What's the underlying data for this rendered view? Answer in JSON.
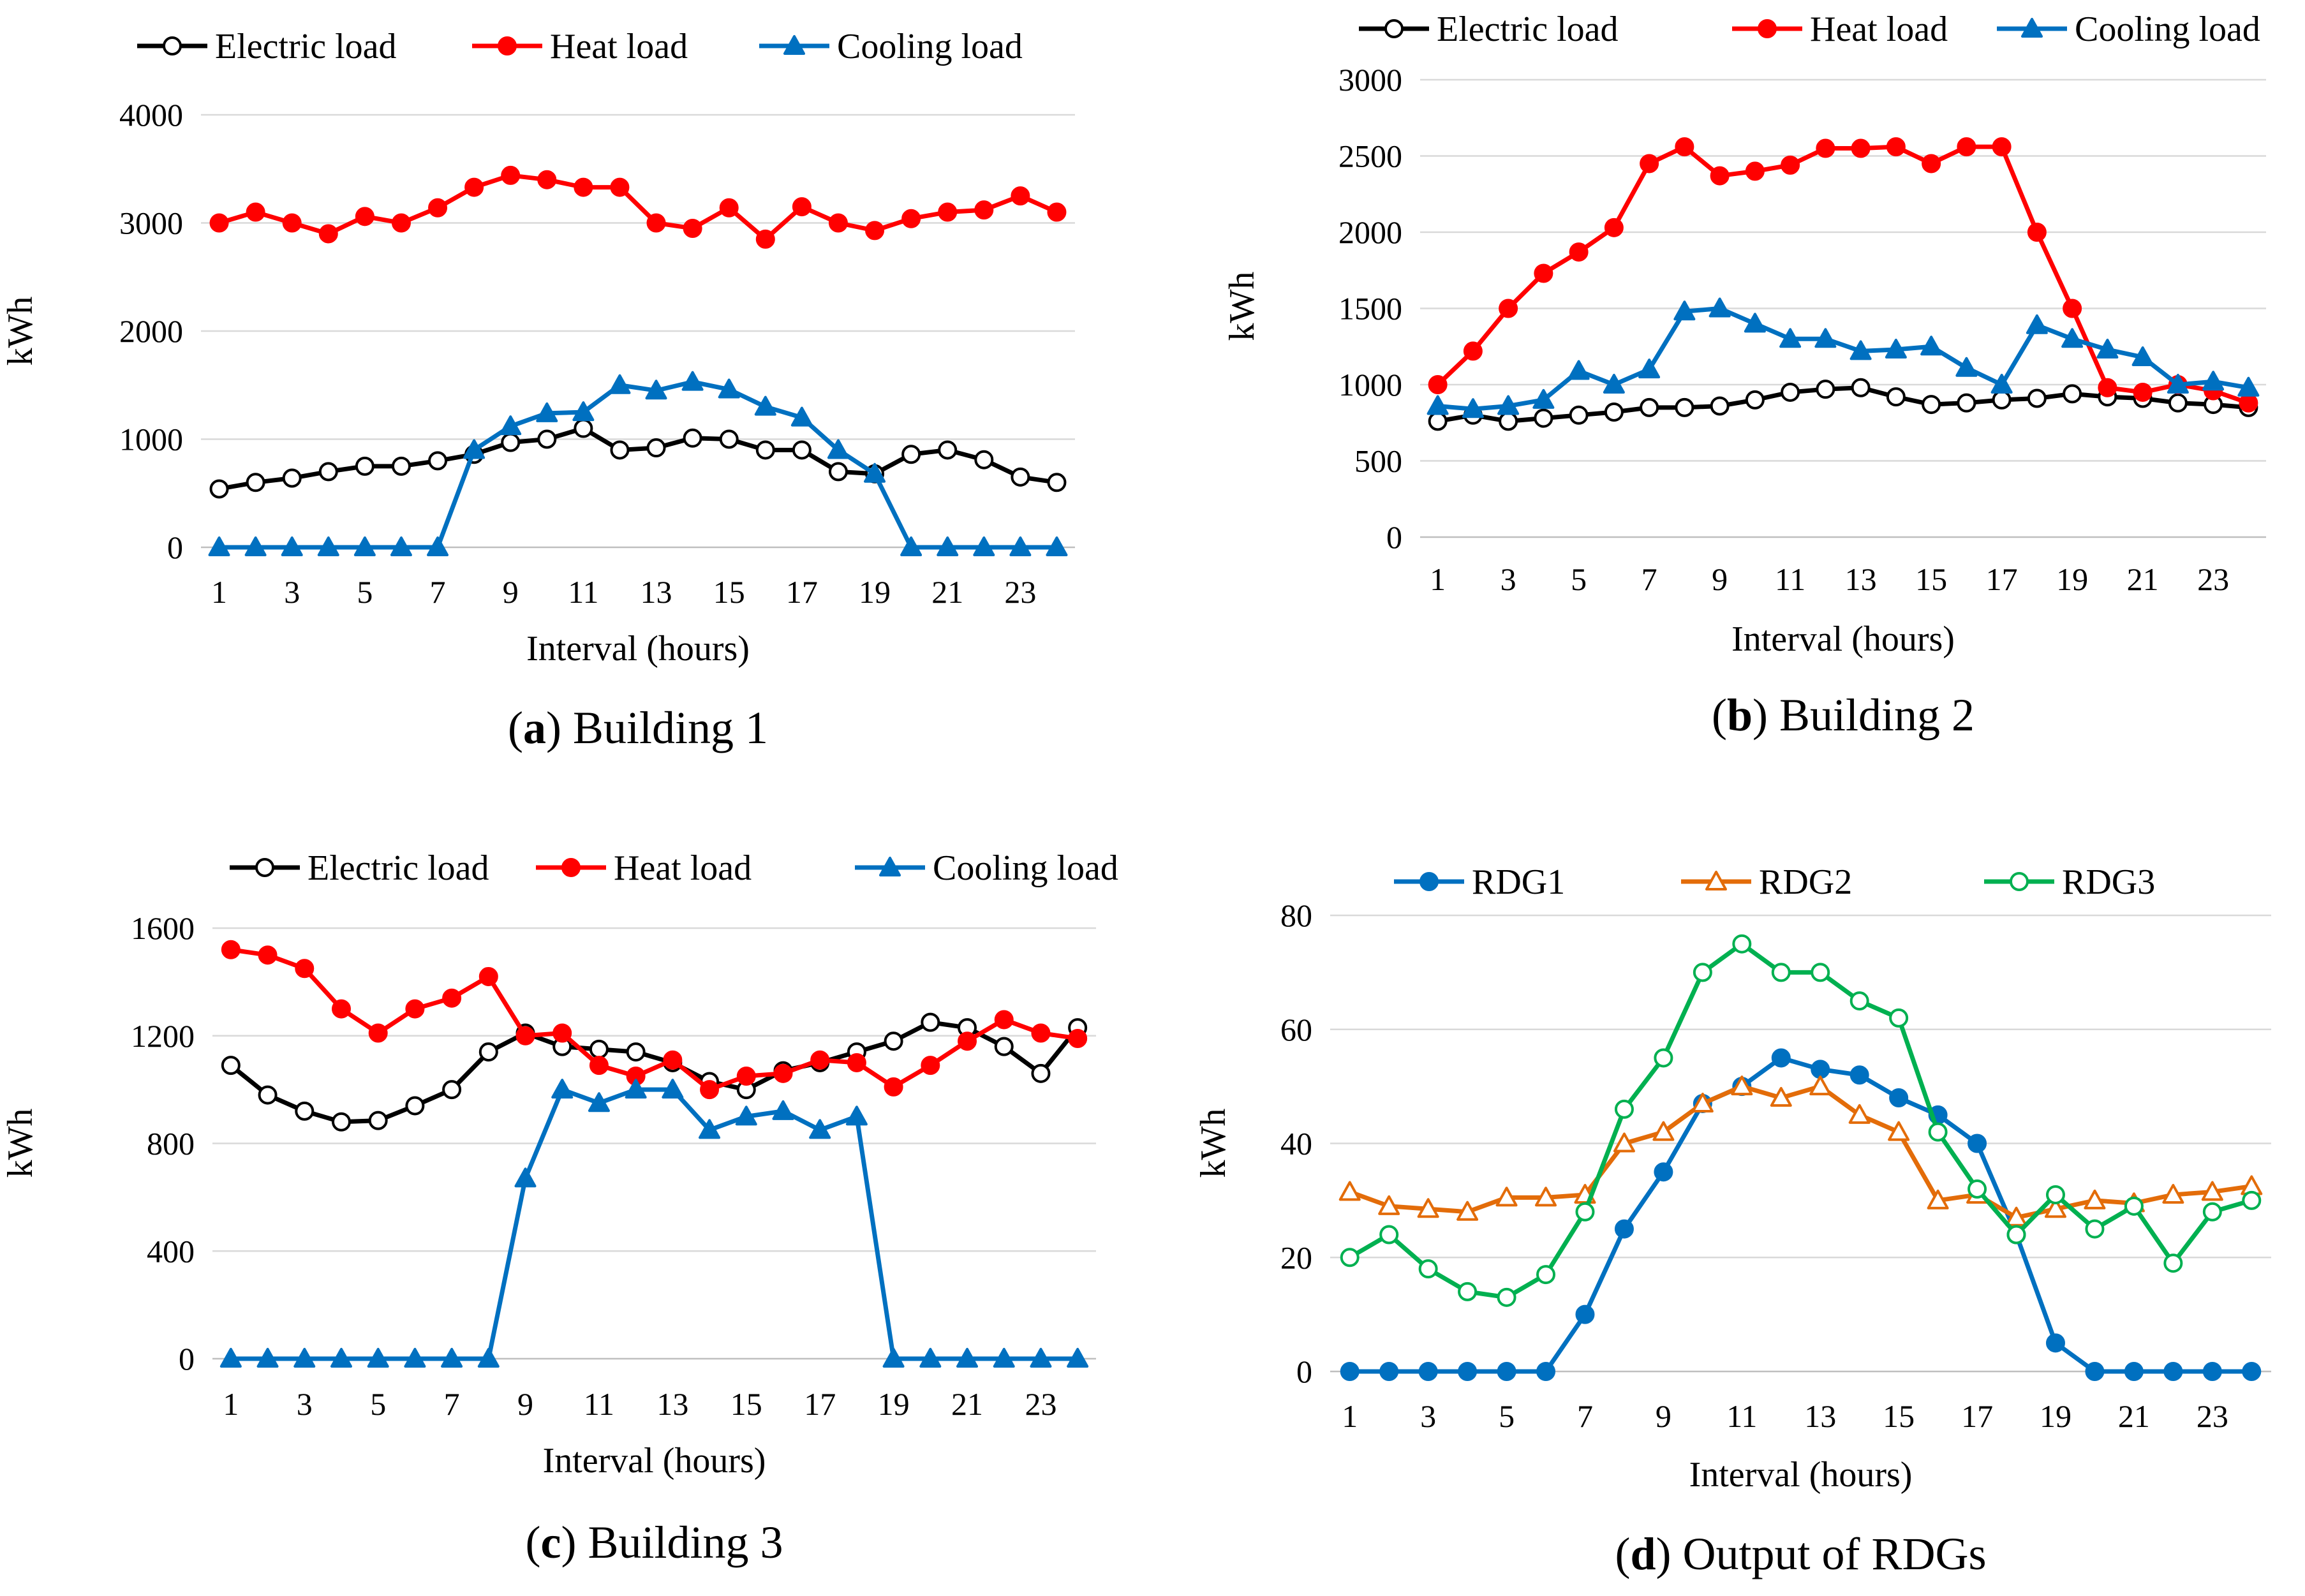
{
  "chart_data": [
    {
      "id": "a",
      "type": "line",
      "caption_letter": "a",
      "caption_title": "Building 1",
      "xlabel": "Interval (hours)",
      "ylabel": "kWh",
      "ylim": [
        0,
        4000
      ],
      "yticks": [
        0,
        1000,
        2000,
        3000,
        4000
      ],
      "xticks": [
        1,
        3,
        5,
        7,
        9,
        11,
        13,
        15,
        17,
        19,
        21,
        23
      ],
      "x": [
        1,
        2,
        3,
        4,
        5,
        6,
        7,
        8,
        9,
        10,
        11,
        12,
        13,
        14,
        15,
        16,
        17,
        18,
        19,
        20,
        21,
        22,
        23,
        24
      ],
      "legend_position": "top",
      "series": [
        {
          "name": "Electric load",
          "color": "#000000",
          "marker": "circle-open",
          "values": [
            540,
            600,
            640,
            700,
            750,
            750,
            800,
            860,
            970,
            1000,
            1100,
            900,
            920,
            1010,
            1000,
            900,
            900,
            700,
            680,
            860,
            900,
            810,
            650,
            600
          ]
        },
        {
          "name": "Heat load",
          "color": "#ff0000",
          "marker": "circle-filled",
          "values": [
            3000,
            3100,
            3000,
            2900,
            3060,
            3000,
            3140,
            3330,
            3440,
            3400,
            3330,
            3330,
            3000,
            2950,
            3140,
            2850,
            3150,
            3000,
            2930,
            3040,
            3100,
            3120,
            3250,
            3100
          ]
        },
        {
          "name": "Cooling load",
          "color": "#0070c0",
          "marker": "triangle-filled",
          "values": [
            0,
            0,
            0,
            0,
            0,
            0,
            0,
            900,
            1120,
            1240,
            1250,
            1500,
            1450,
            1530,
            1460,
            1300,
            1200,
            900,
            680,
            0,
            0,
            0,
            0,
            0
          ]
        }
      ]
    },
    {
      "id": "b",
      "type": "line",
      "caption_letter": "b",
      "caption_title": "Building 2",
      "xlabel": "Interval (hours)",
      "ylabel": "kWh",
      "ylim": [
        0,
        3000
      ],
      "yticks": [
        0,
        500,
        1000,
        1500,
        2000,
        2500,
        3000
      ],
      "xticks": [
        1,
        3,
        5,
        7,
        9,
        11,
        13,
        15,
        17,
        19,
        21,
        23
      ],
      "x": [
        1,
        2,
        3,
        4,
        5,
        6,
        7,
        8,
        9,
        10,
        11,
        12,
        13,
        14,
        15,
        16,
        17,
        18,
        19,
        20,
        21,
        22,
        23,
        24
      ],
      "legend_position": "top",
      "series": [
        {
          "name": "Electric load",
          "color": "#000000",
          "marker": "circle-open",
          "values": [
            760,
            800,
            760,
            780,
            800,
            820,
            850,
            850,
            860,
            900,
            950,
            970,
            980,
            920,
            870,
            880,
            900,
            910,
            940,
            920,
            910,
            880,
            870,
            850
          ]
        },
        {
          "name": "Heat load",
          "color": "#ff0000",
          "marker": "circle-filled",
          "values": [
            1000,
            1220,
            1500,
            1730,
            1870,
            2030,
            2450,
            2560,
            2370,
            2400,
            2440,
            2550,
            2550,
            2560,
            2450,
            2560,
            2560,
            2000,
            1500,
            980,
            950,
            1000,
            960,
            880
          ]
        },
        {
          "name": "Cooling load",
          "color": "#0070c0",
          "marker": "triangle-filled",
          "values": [
            860,
            840,
            860,
            900,
            1090,
            1000,
            1100,
            1480,
            1500,
            1400,
            1300,
            1300,
            1220,
            1230,
            1250,
            1110,
            1000,
            1390,
            1300,
            1230,
            1180,
            1000,
            1020,
            980
          ]
        }
      ]
    },
    {
      "id": "c",
      "type": "line",
      "caption_letter": "c",
      "caption_title": "Building 3",
      "xlabel": "Interval (hours)",
      "ylabel": "kWh",
      "ylim": [
        0,
        1600
      ],
      "yticks": [
        0,
        400,
        800,
        1200,
        1600
      ],
      "xticks": [
        1,
        3,
        5,
        7,
        9,
        11,
        13,
        15,
        17,
        19,
        21,
        23
      ],
      "x": [
        1,
        2,
        3,
        4,
        5,
        6,
        7,
        8,
        9,
        10,
        11,
        12,
        13,
        14,
        15,
        16,
        17,
        18,
        19,
        20,
        21,
        22,
        23,
        24
      ],
      "legend_position": "top",
      "series": [
        {
          "name": "Electric load",
          "color": "#000000",
          "marker": "circle-open",
          "values": [
            1090,
            980,
            920,
            880,
            885,
            940,
            1000,
            1140,
            1210,
            1160,
            1150,
            1140,
            1100,
            1030,
            1000,
            1070,
            1100,
            1140,
            1180,
            1250,
            1230,
            1160,
            1060,
            1230
          ]
        },
        {
          "name": "Heat load",
          "color": "#ff0000",
          "marker": "circle-filled",
          "values": [
            1520,
            1500,
            1450,
            1300,
            1210,
            1300,
            1340,
            1420,
            1200,
            1210,
            1090,
            1050,
            1110,
            1000,
            1050,
            1060,
            1110,
            1100,
            1010,
            1090,
            1180,
            1260,
            1210,
            1190
          ]
        },
        {
          "name": "Cooling load",
          "color": "#0070c0",
          "marker": "triangle-filled",
          "values": [
            0,
            0,
            0,
            0,
            0,
            0,
            0,
            0,
            670,
            1000,
            950,
            1000,
            1000,
            850,
            900,
            920,
            850,
            900,
            0,
            0,
            0,
            0,
            0,
            0
          ]
        }
      ]
    },
    {
      "id": "d",
      "type": "line",
      "caption_letter": "d",
      "caption_title": "Output of RDGs",
      "xlabel": "Interval (hours)",
      "ylabel": "kWh",
      "ylim": [
        0,
        80
      ],
      "yticks": [
        0,
        20,
        40,
        60,
        80
      ],
      "xticks": [
        1,
        3,
        5,
        7,
        9,
        11,
        13,
        15,
        17,
        19,
        21,
        23
      ],
      "x": [
        1,
        2,
        3,
        4,
        5,
        6,
        7,
        8,
        9,
        10,
        11,
        12,
        13,
        14,
        15,
        16,
        17,
        18,
        19,
        20,
        21,
        22,
        23,
        24
      ],
      "legend_position": "top",
      "series": [
        {
          "name": "RDG1",
          "color": "#0070c0",
          "marker": "circle-filled",
          "values": [
            0,
            0,
            0,
            0,
            0,
            0,
            10,
            25,
            35,
            47,
            50,
            55,
            53,
            52,
            48,
            45,
            40,
            24,
            5,
            0,
            0,
            0,
            0,
            0
          ]
        },
        {
          "name": "RDG2",
          "color": "#e36c09",
          "marker": "triangle-open",
          "values": [
            31.5,
            29,
            28.5,
            28,
            30.5,
            30.5,
            31,
            40,
            42,
            47,
            50,
            48,
            50,
            45,
            42,
            30,
            31,
            27,
            28.5,
            30,
            29.5,
            31,
            31.5,
            32.5
          ]
        },
        {
          "name": "RDG3",
          "color": "#00b050",
          "marker": "circle-open",
          "values": [
            20,
            24,
            18,
            14,
            13,
            17,
            28,
            46,
            55,
            70,
            75,
            70,
            70,
            65,
            62,
            42,
            32,
            24,
            31,
            25,
            29,
            19,
            28,
            30
          ]
        }
      ]
    }
  ]
}
